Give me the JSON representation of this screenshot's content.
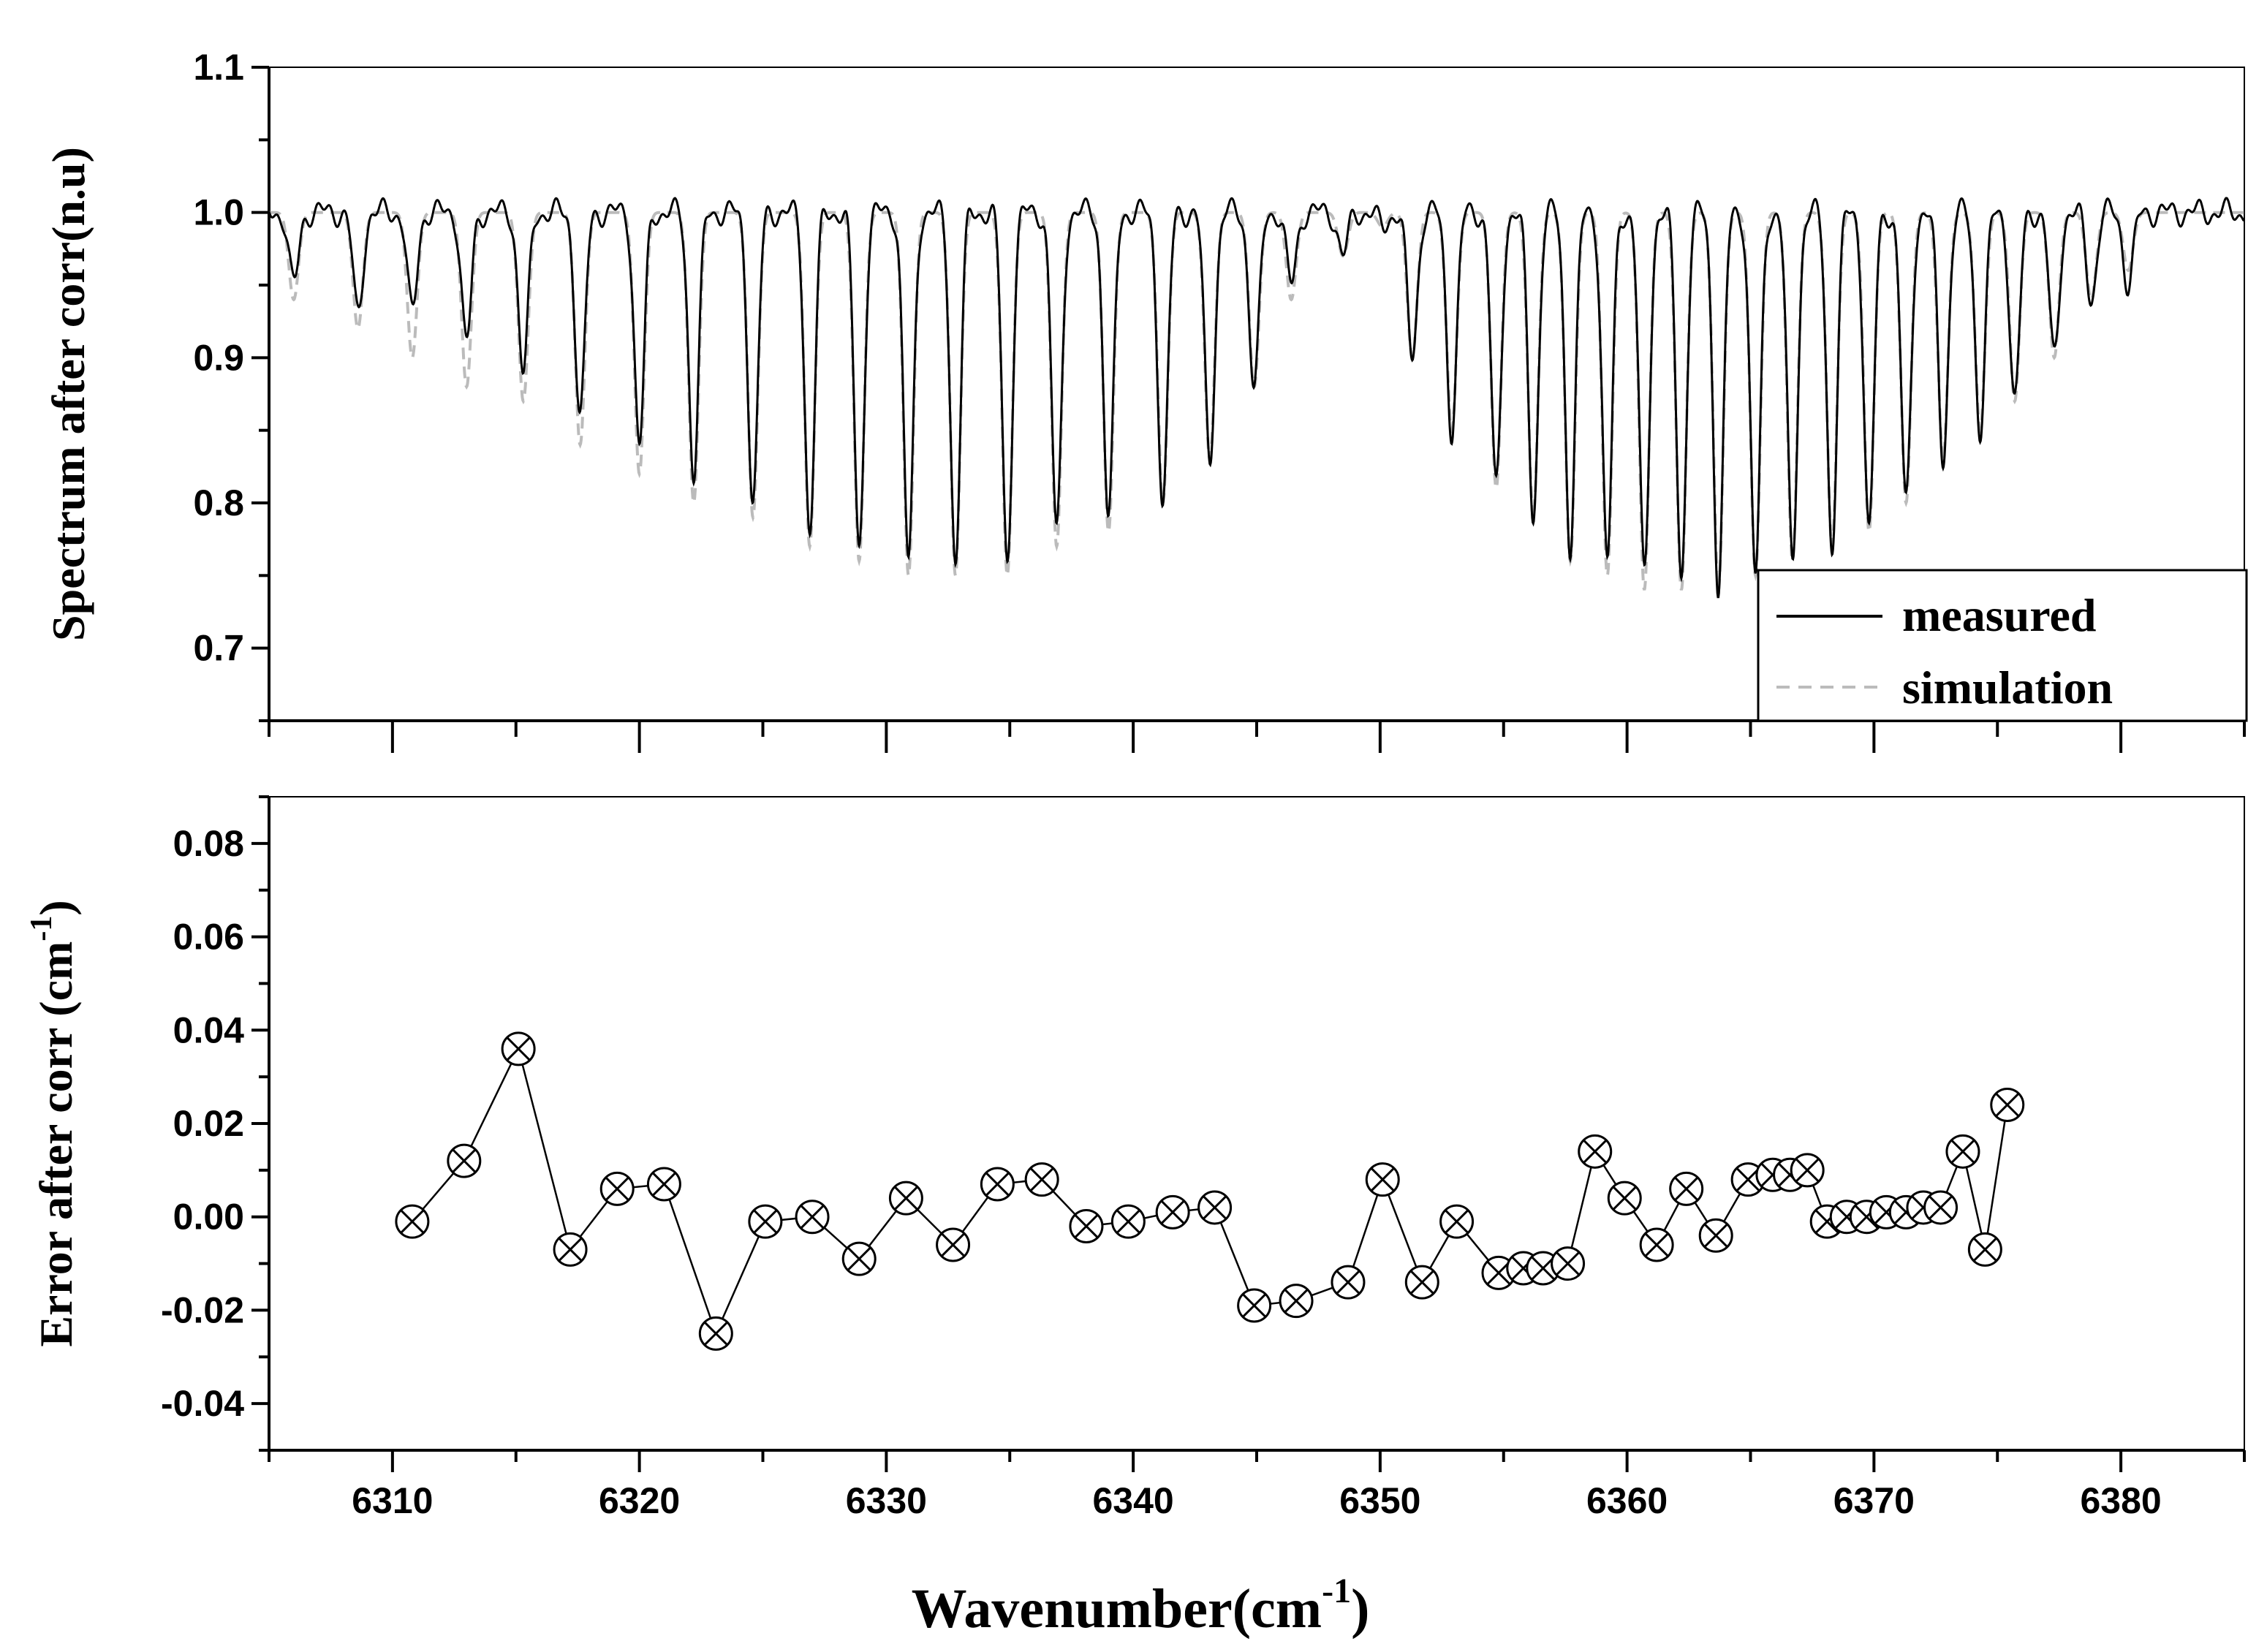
{
  "chart_data": [
    {
      "type": "line",
      "panel": "top",
      "ylabel": "Spectrum after corr(n.u)",
      "xlabel": "",
      "xlim": [
        6305,
        6385
      ],
      "ylim": [
        0.65,
        1.1
      ],
      "yticks": [
        "0.7",
        "0.8",
        "0.9",
        "1.0",
        "1.1"
      ],
      "legend": {
        "position": "bottom-right",
        "entries": [
          "measured",
          "simulation"
        ]
      },
      "baseline": 1.0,
      "absorption_lines": {
        "centers": [
          6306.0,
          6308.6,
          6310.8,
          6313.0,
          6315.3,
          6317.6,
          6320.0,
          6322.2,
          6324.6,
          6326.9,
          6328.9,
          6330.9,
          6332.8,
          6334.9,
          6336.9,
          6339.0,
          6341.2,
          6343.1,
          6344.9,
          6346.4,
          6348.5,
          6350.1,
          6351.3,
          6352.9,
          6354.7,
          6356.2,
          6357.7,
          6359.2,
          6360.7,
          6362.2,
          6363.7,
          6365.2,
          6366.7,
          6368.3,
          6369.8,
          6371.3,
          6372.8,
          6374.3,
          6375.7,
          6377.3,
          6378.8,
          6380.3
        ],
        "measured_min": [
          0.95,
          0.93,
          0.93,
          0.91,
          0.89,
          0.86,
          0.84,
          0.82,
          0.8,
          0.78,
          0.77,
          0.76,
          0.76,
          0.76,
          0.78,
          0.79,
          0.8,
          0.83,
          0.88,
          0.95,
          0.97,
          0.99,
          0.9,
          0.85,
          0.81,
          0.79,
          0.77,
          0.76,
          0.75,
          0.75,
          0.74,
          0.75,
          0.76,
          0.77,
          0.78,
          0.8,
          0.83,
          0.85,
          0.87,
          0.9,
          0.94,
          0.95
        ],
        "simulation_min": [
          0.94,
          0.92,
          0.9,
          0.88,
          0.87,
          0.84,
          0.82,
          0.8,
          0.79,
          0.77,
          0.76,
          0.75,
          0.75,
          0.75,
          0.77,
          0.78,
          0.8,
          0.83,
          0.88,
          0.94,
          0.97,
          0.99,
          0.9,
          0.85,
          0.81,
          0.79,
          0.76,
          0.75,
          0.74,
          0.74,
          0.74,
          0.75,
          0.76,
          0.77,
          0.78,
          0.8,
          0.83,
          0.85,
          0.87,
          0.9,
          0.94,
          0.96
        ]
      },
      "series": [
        {
          "name": "measured",
          "style": "solid",
          "color": "#000000"
        },
        {
          "name": "simulation",
          "style": "dashed",
          "color": "#bbbbbb"
        }
      ]
    },
    {
      "type": "line",
      "panel": "bottom",
      "marker": "crossed-circle",
      "title": "",
      "xlabel": "Wavenumber(cm",
      "xlabel_superscript": "-1",
      "xlabel_close": ")",
      "ylabel": "Error after corr (cm",
      "ylabel_superscript": "-1",
      "ylabel_close": ")",
      "xlim": [
        6305,
        6385
      ],
      "ylim": [
        -0.05,
        0.09
      ],
      "xticks": [
        "6310",
        "6320",
        "6330",
        "6340",
        "6350",
        "6360",
        "6370",
        "6380"
      ],
      "yticks": [
        "-0.04",
        "-0.02",
        "0.00",
        "0.02",
        "0.04",
        "0.06",
        "0.08"
      ],
      "series": [
        {
          "name": "error",
          "color": "#000000",
          "x": [
            6310.8,
            6312.9,
            6315.1,
            6317.2,
            6319.1,
            6321.0,
            6323.1,
            6325.1,
            6327.0,
            6328.9,
            6330.8,
            6332.7,
            6334.5,
            6336.3,
            6338.1,
            6339.8,
            6341.6,
            6343.3,
            6344.9,
            6346.6,
            6348.7,
            6350.1,
            6351.7,
            6353.1,
            6354.8,
            6355.8,
            6356.6,
            6357.6,
            6358.7,
            6359.9,
            6361.2,
            6362.4,
            6363.6,
            6364.9,
            6365.9,
            6366.6,
            6367.3,
            6368.1,
            6368.9,
            6369.7,
            6370.5,
            6371.3,
            6372.0,
            6372.7,
            6373.6,
            6374.5,
            6375.4
          ],
          "y": [
            -0.001,
            0.012,
            0.036,
            -0.007,
            0.006,
            0.007,
            -0.025,
            -0.001,
            0.0,
            -0.009,
            0.004,
            -0.006,
            0.007,
            0.008,
            -0.002,
            -0.001,
            0.001,
            0.002,
            -0.019,
            -0.018,
            -0.014,
            0.008,
            -0.014,
            -0.001,
            -0.012,
            -0.011,
            -0.011,
            -0.01,
            0.014,
            0.004,
            -0.006,
            0.006,
            -0.004,
            0.008,
            0.009,
            0.009,
            0.01,
            -0.001,
            0.0,
            0.0,
            0.001,
            0.001,
            0.002,
            0.002,
            0.014,
            -0.007,
            0.024
          ]
        }
      ]
    }
  ]
}
